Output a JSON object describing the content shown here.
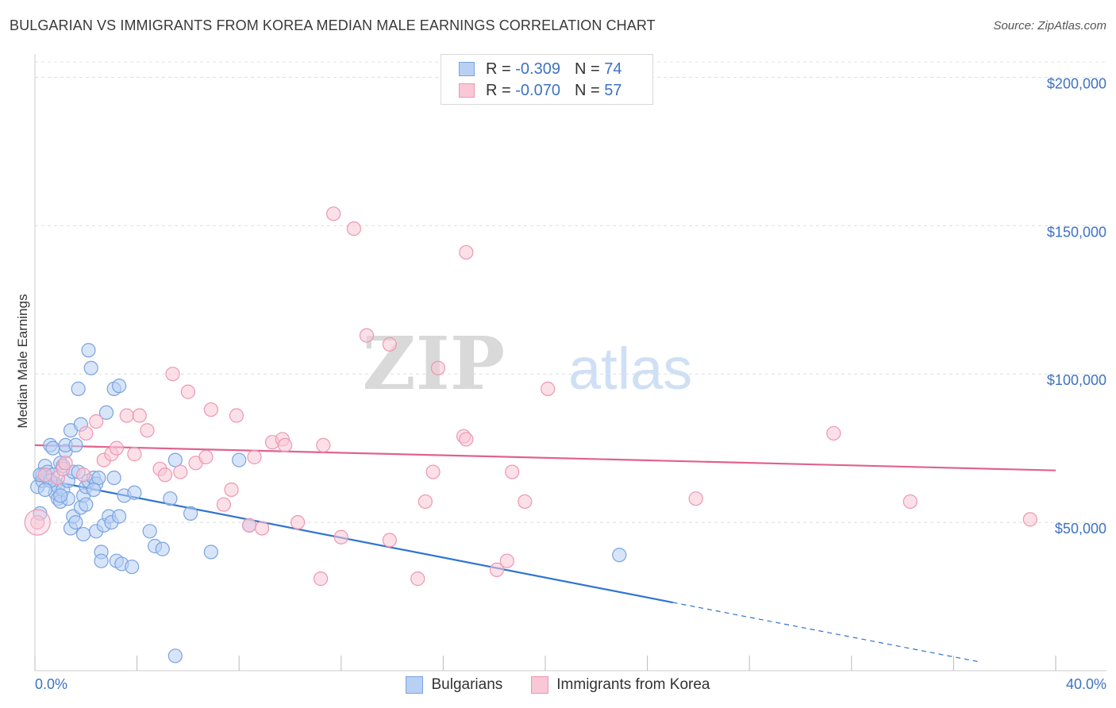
{
  "title": "BULGARIAN VS IMMIGRANTS FROM KOREA MEDIAN MALE EARNINGS CORRELATION CHART",
  "source": "Source: ZipAtlas.com",
  "watermark": {
    "zip": "ZIP",
    "atlas": "atlas"
  },
  "legend_top": [
    {
      "r_label": "R =",
      "r_value": "-0.309",
      "n_label": "N =",
      "n_value": "74",
      "fill": "#b8d0f4",
      "stroke": "#7aa3e0"
    },
    {
      "r_label": "R =",
      "r_value": "-0.070",
      "n_label": "N =",
      "n_value": "57",
      "fill": "#f9c7d6",
      "stroke": "#ec97b2"
    }
  ],
  "legend_bottom": [
    {
      "label": "Bulgarians",
      "fill": "#b8d0f4",
      "stroke": "#7aa3e0"
    },
    {
      "label": "Immigrants from Korea",
      "fill": "#f9c7d6",
      "stroke": "#ec97b2"
    }
  ],
  "chart_data": {
    "type": "scatter",
    "title": "BULGARIAN VS IMMIGRANTS FROM KOREA MEDIAN MALE EARNINGS CORRELATION CHART",
    "xlabel": "",
    "ylabel": "Median Male Earnings",
    "xlim": [
      0,
      40
    ],
    "ylim": [
      0,
      210000
    ],
    "x_tick_labels": [
      "0.0%",
      "40.0%"
    ],
    "y_ticks": [
      50000,
      100000,
      150000,
      200000
    ],
    "y_tick_labels": [
      "$50,000",
      "$100,000",
      "$150,000",
      "$200,000"
    ],
    "grid": true,
    "series": [
      {
        "name": "Bulgarians",
        "color": "#7aa3e0",
        "fill": "#b8d0f4",
        "line_color": "#2f74d0",
        "trend": {
          "x0": 0,
          "y0": 65000,
          "x1": 25,
          "y1": 23000,
          "dash_x1": 37,
          "dash_y1": 3000
        },
        "points": [
          [
            0.1,
            62000
          ],
          [
            0.2,
            53000
          ],
          [
            0.3,
            66000
          ],
          [
            0.3,
            64000
          ],
          [
            0.4,
            69000
          ],
          [
            0.5,
            65000
          ],
          [
            0.5,
            67000
          ],
          [
            0.6,
            76000
          ],
          [
            0.7,
            75000
          ],
          [
            0.7,
            66000
          ],
          [
            0.8,
            63000
          ],
          [
            0.8,
            60000
          ],
          [
            0.9,
            58000
          ],
          [
            0.9,
            62000
          ],
          [
            1.0,
            70000
          ],
          [
            1.0,
            57000
          ],
          [
            1.1,
            61000
          ],
          [
            1.1,
            69000
          ],
          [
            1.2,
            74000
          ],
          [
            1.2,
            76000
          ],
          [
            1.3,
            64000
          ],
          [
            1.3,
            58000
          ],
          [
            1.4,
            81000
          ],
          [
            1.4,
            48000
          ],
          [
            1.5,
            67000
          ],
          [
            1.5,
            52000
          ],
          [
            1.6,
            76000
          ],
          [
            1.6,
            50000
          ],
          [
            1.7,
            95000
          ],
          [
            1.7,
            67000
          ],
          [
            1.8,
            83000
          ],
          [
            1.8,
            55000
          ],
          [
            1.9,
            59000
          ],
          [
            1.9,
            46000
          ],
          [
            2.0,
            62000
          ],
          [
            2.0,
            56000
          ],
          [
            2.1,
            108000
          ],
          [
            2.1,
            64000
          ],
          [
            2.2,
            102000
          ],
          [
            2.3,
            65000
          ],
          [
            2.4,
            63000
          ],
          [
            2.4,
            47000
          ],
          [
            2.5,
            65000
          ],
          [
            2.6,
            40000
          ],
          [
            2.6,
            37000
          ],
          [
            2.7,
            49000
          ],
          [
            2.8,
            87000
          ],
          [
            2.9,
            52000
          ],
          [
            3.0,
            50000
          ],
          [
            3.1,
            95000
          ],
          [
            3.1,
            65000
          ],
          [
            3.2,
            37000
          ],
          [
            3.3,
            96000
          ],
          [
            3.3,
            52000
          ],
          [
            3.4,
            36000
          ],
          [
            3.5,
            59000
          ],
          [
            3.8,
            35000
          ],
          [
            3.9,
            60000
          ],
          [
            4.5,
            47000
          ],
          [
            4.7,
            42000
          ],
          [
            5.0,
            41000
          ],
          [
            5.3,
            58000
          ],
          [
            5.5,
            71000
          ],
          [
            6.1,
            53000
          ],
          [
            6.9,
            40000
          ],
          [
            8.0,
            71000
          ],
          [
            8.4,
            49000
          ],
          [
            5.5,
            5000
          ],
          [
            22.9,
            39000
          ],
          [
            0.2,
            66000
          ],
          [
            0.6,
            64000
          ],
          [
            1.0,
            59000
          ],
          [
            0.4,
            61000
          ],
          [
            2.3,
            61000
          ]
        ]
      },
      {
        "name": "Immigrants from Korea",
        "color": "#ec97b2",
        "fill": "#f9c7d6",
        "line_color": "#e0628e",
        "trend": {
          "x0": 0,
          "y0": 76000,
          "x1": 40,
          "y1": 67500
        },
        "points": [
          [
            0.1,
            50000
          ],
          [
            0.4,
            66000
          ],
          [
            0.9,
            65000
          ],
          [
            1.1,
            68000
          ],
          [
            1.2,
            70000
          ],
          [
            1.9,
            66000
          ],
          [
            2.0,
            80000
          ],
          [
            2.4,
            84000
          ],
          [
            2.7,
            71000
          ],
          [
            3.0,
            73000
          ],
          [
            3.2,
            75000
          ],
          [
            3.6,
            86000
          ],
          [
            3.9,
            73000
          ],
          [
            4.1,
            86000
          ],
          [
            4.4,
            81000
          ],
          [
            4.9,
            68000
          ],
          [
            5.1,
            66000
          ],
          [
            5.4,
            100000
          ],
          [
            5.7,
            67000
          ],
          [
            6.0,
            94000
          ],
          [
            6.3,
            70000
          ],
          [
            6.7,
            72000
          ],
          [
            6.9,
            88000
          ],
          [
            7.4,
            56000
          ],
          [
            7.7,
            61000
          ],
          [
            7.9,
            86000
          ],
          [
            8.4,
            49000
          ],
          [
            8.6,
            72000
          ],
          [
            8.9,
            48000
          ],
          [
            9.3,
            77000
          ],
          [
            9.7,
            78000
          ],
          [
            9.8,
            76000
          ],
          [
            10.3,
            50000
          ],
          [
            11.2,
            31000
          ],
          [
            11.3,
            76000
          ],
          [
            12.0,
            45000
          ],
          [
            11.7,
            154000
          ],
          [
            12.5,
            149000
          ],
          [
            13.0,
            113000
          ],
          [
            13.9,
            44000
          ],
          [
            13.9,
            110000
          ],
          [
            15.0,
            31000
          ],
          [
            15.3,
            57000
          ],
          [
            15.6,
            67000
          ],
          [
            15.8,
            102000
          ],
          [
            16.8,
            79000
          ],
          [
            16.9,
            78000
          ],
          [
            16.9,
            141000
          ],
          [
            18.1,
            34000
          ],
          [
            18.5,
            37000
          ],
          [
            18.7,
            67000
          ],
          [
            19.2,
            57000
          ],
          [
            20.1,
            95000
          ],
          [
            25.9,
            58000
          ],
          [
            31.3,
            80000
          ],
          [
            34.3,
            57000
          ],
          [
            39.0,
            51000
          ]
        ]
      }
    ]
  }
}
